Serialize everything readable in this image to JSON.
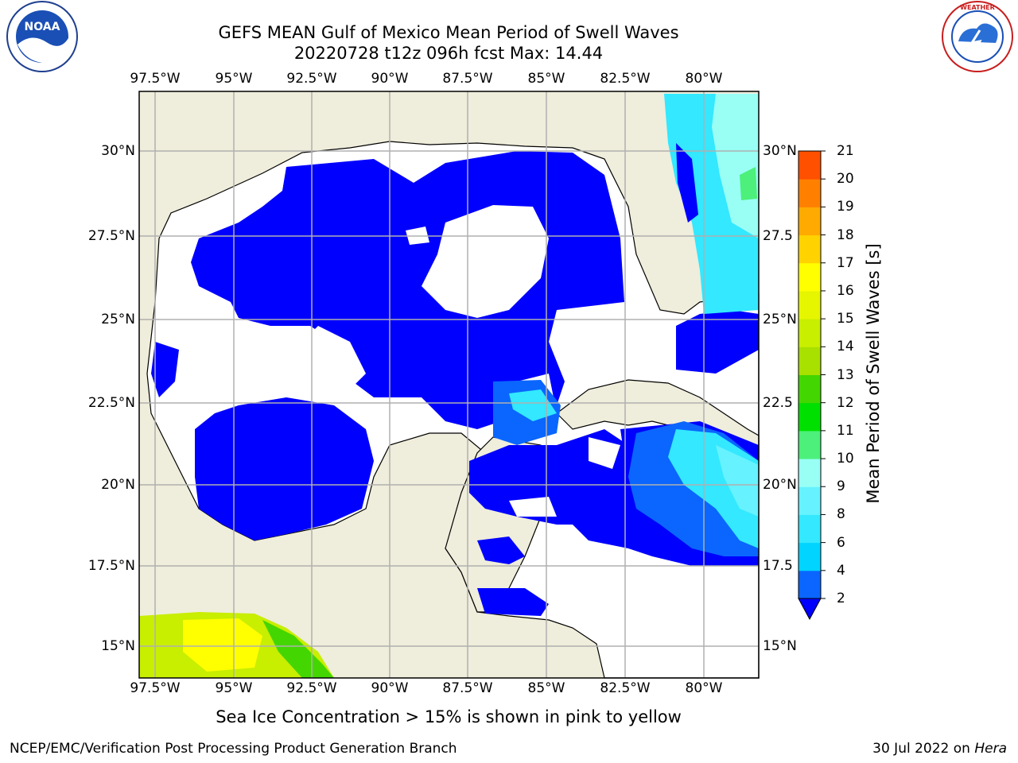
{
  "title": {
    "line1": "GEFS MEAN Gulf of Mexico Mean Period of Swell Waves",
    "line2": "20220728 t12z 096h fcst   Max: 14.44"
  },
  "longitude_labels": [
    "97.5°W",
    "95°W",
    "92.5°W",
    "90°W",
    "87.5°W",
    "85°W",
    "82.5°W",
    "80°W"
  ],
  "latitude_labels_left": [
    "30°N",
    "27.5°N",
    "25°N",
    "22.5°N",
    "20°N",
    "17.5°N",
    "15°N"
  ],
  "latitude_labels_right": [
    "30°N",
    "27.5",
    "25°N",
    "22.5",
    "20°N",
    "17.5",
    "15°N"
  ],
  "colorbar": {
    "title": "Mean Period of Swell Waves [s]",
    "ticks": [
      "2",
      "4",
      "6",
      "8",
      "9",
      "10",
      "11",
      "12",
      "13",
      "14",
      "15",
      "16",
      "17",
      "18",
      "19",
      "20",
      "21"
    ],
    "colors": [
      "#0a66ff",
      "#00d4ff",
      "#33e8ff",
      "#66f2ff",
      "#99fff5",
      "#4cf07a",
      "#00e000",
      "#44d600",
      "#a8e000",
      "#c8ee00",
      "#e6f500",
      "#ffff00",
      "#ffd200",
      "#ffaa00",
      "#ff8000",
      "#ff5000",
      "#ff2000",
      "#ff0000"
    ],
    "underflow_color": "#0000ff"
  },
  "colors": {
    "land": "#efeddb",
    "ocean_nodata": "#ffffff",
    "swell_low": "#0000ff",
    "grid": "#b0b0b0"
  },
  "footer_note": "Sea Ice Concentration > 15% is shown in pink to yellow",
  "credit": "NCEP/EMC/Verification Post Processing Product Generation Branch",
  "date": {
    "text": "30 Jul 2022 on",
    "host": "Hera"
  },
  "logos": {
    "left": "NOAA",
    "right": "NATIONAL WEATHER SERVICE"
  }
}
